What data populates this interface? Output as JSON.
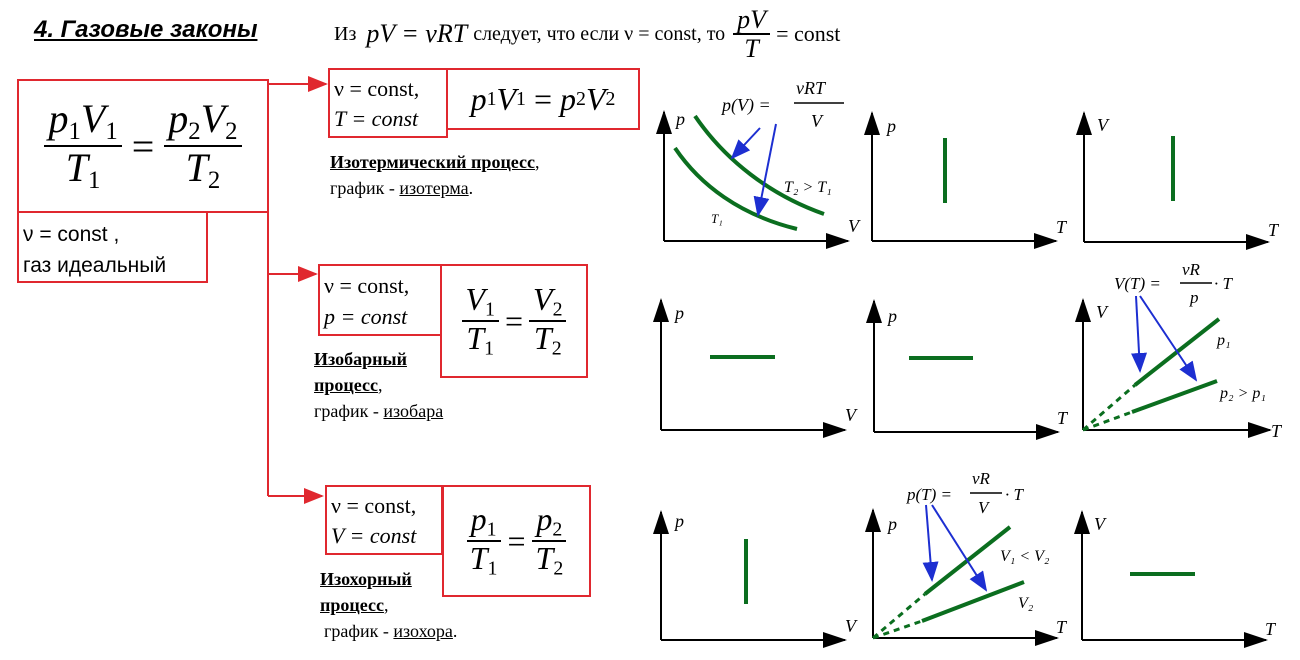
{
  "header": {
    "title": "4. Газовые законы",
    "intro_from": "Из",
    "intro_eq": "pV = νRT",
    "intro_mid": "следует, что если ν = const, то",
    "intro_frac_num": "pV",
    "intro_frac_den": "T",
    "intro_end": "= const"
  },
  "main_box": {
    "num_left": "p",
    "num_right": "p",
    "v": "V",
    "t": "T",
    "idx1": "1",
    "idx2": "2",
    "eq": "=",
    "condition_line1": "ν = const ,",
    "condition_line2": "газ идеальный"
  },
  "isothermal": {
    "cond_line1": "ν = const,",
    "cond_line2": "T = const",
    "formula_left": "p",
    "formula_mid": "V",
    "formula_eq": "=",
    "title": "Изотермический процесс",
    "title_after": ",",
    "graph_prefix": "график - ",
    "graph_name": "изотерма",
    "graph_after": "."
  },
  "isobaric": {
    "cond_line1": "ν = const,",
    "cond_line2": "p = const",
    "title_line1": "Изобарный",
    "title_line2": "процесс",
    "title_after": ",",
    "graph_prefix": "график - ",
    "graph_name": "изобара"
  },
  "isochoric": {
    "cond_line1": "ν = const,",
    "cond_line2": "V = const",
    "title_line1": "Изохорный",
    "title_line2": "процесс",
    "title_after": ",",
    "graph_prefix": "график - ",
    "graph_name": "изохора",
    "graph_after": "."
  },
  "graphs": {
    "p": "p",
    "V": "V",
    "T": "T",
    "iso_t_formula_left": "p(V) =",
    "iso_t_formula_num": "νRT",
    "iso_t_formula_den": "V",
    "iso_t_t2": "T₂ > T₁",
    "iso_t_t1": "T₁",
    "iso_p_formula_left": "V(T) =",
    "iso_p_formula_num": "νR",
    "iso_p_formula_den": "p",
    "iso_p_formula_right": "· T",
    "iso_p_p1": "p₁",
    "iso_p_p2": "p₂ > p₁",
    "iso_v_formula_left": "p(T) =",
    "iso_v_formula_num": "νR",
    "iso_v_formula_den": "V",
    "iso_v_formula_right": "· T",
    "iso_v_v1": "V₁ < V₂",
    "iso_v_v2": "V₂"
  },
  "colors": {
    "box_border": "#e0282f",
    "connector": "#e0282f",
    "graph_line": "#0b6e1f",
    "arrow": "#1d2fd1"
  }
}
